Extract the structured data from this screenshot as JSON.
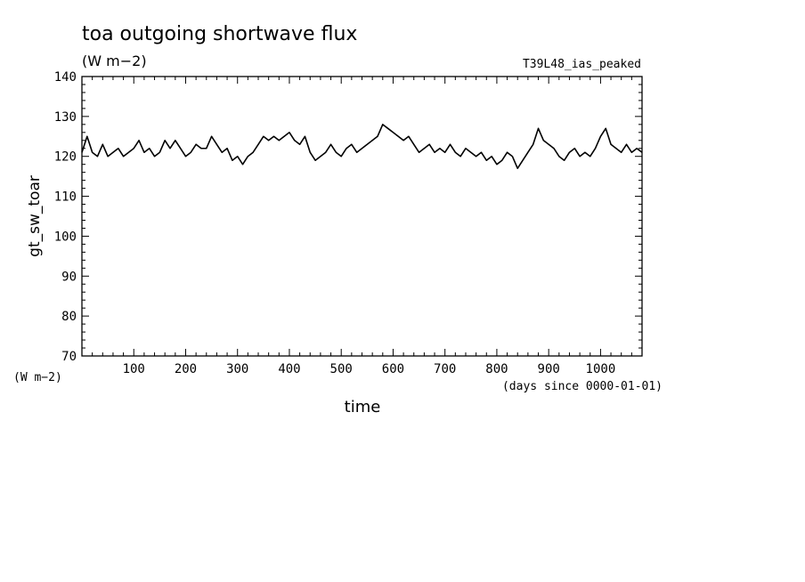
{
  "chart_data": {
    "type": "line",
    "title": "toa outgoing shortwave flux",
    "subtitle": "(W m−2)",
    "run_label": "T39L48_ias_peaked",
    "xlabel": "time",
    "x_units": "(days since 0000-01-01)",
    "ylabel": "gt_sw_toar",
    "y_units": "(W m−2)",
    "xlim": [
      0,
      1080
    ],
    "ylim": [
      70,
      140
    ],
    "x_ticks": [
      100,
      200,
      300,
      400,
      500,
      600,
      700,
      800,
      900,
      1000
    ],
    "y_ticks": [
      70,
      80,
      90,
      100,
      110,
      120,
      130,
      140
    ],
    "grid": false,
    "legend": "none",
    "line_color": "#000000",
    "series": [
      {
        "x": [
          0,
          10,
          20,
          30,
          40,
          50,
          60,
          70,
          80,
          90,
          100,
          110,
          120,
          130,
          140,
          150,
          160,
          170,
          180,
          190,
          200,
          210,
          220,
          230,
          240,
          250,
          260,
          270,
          280,
          290,
          300,
          310,
          320,
          330,
          340,
          350,
          360,
          370,
          380,
          390,
          400,
          410,
          420,
          430,
          440,
          450,
          460,
          470,
          480,
          490,
          500,
          510,
          520,
          530,
          540,
          550,
          560,
          570,
          580,
          590,
          600,
          610,
          620,
          630,
          640,
          650,
          660,
          670,
          680,
          690,
          700,
          710,
          720,
          730,
          740,
          750,
          760,
          770,
          780,
          790,
          800,
          810,
          820,
          830,
          840,
          850,
          860,
          870,
          880,
          890,
          900,
          910,
          920,
          930,
          940,
          950,
          960,
          970,
          980,
          990,
          1000,
          1010,
          1020,
          1030,
          1040,
          1050,
          1060,
          1070,
          1080
        ],
        "values": [
          121,
          125,
          121,
          120,
          123,
          120,
          121,
          122,
          120,
          121,
          122,
          124,
          121,
          122,
          120,
          121,
          124,
          122,
          124,
          122,
          120,
          121,
          123,
          122,
          122,
          125,
          123,
          121,
          122,
          119,
          120,
          118,
          120,
          121,
          123,
          125,
          124,
          125,
          124,
          125,
          126,
          124,
          123,
          125,
          121,
          119,
          120,
          121,
          123,
          121,
          120,
          122,
          123,
          121,
          122,
          123,
          124,
          125,
          128,
          127,
          126,
          125,
          124,
          125,
          123,
          121,
          122,
          123,
          121,
          122,
          121,
          123,
          121,
          120,
          122,
          121,
          120,
          121,
          119,
          120,
          118,
          119,
          121,
          120,
          117,
          119,
          121,
          123,
          127,
          124,
          123,
          122,
          120,
          119,
          121,
          122,
          120,
          121,
          120,
          122,
          125,
          127,
          123,
          122,
          121,
          123,
          121,
          122,
          121
        ]
      }
    ]
  }
}
